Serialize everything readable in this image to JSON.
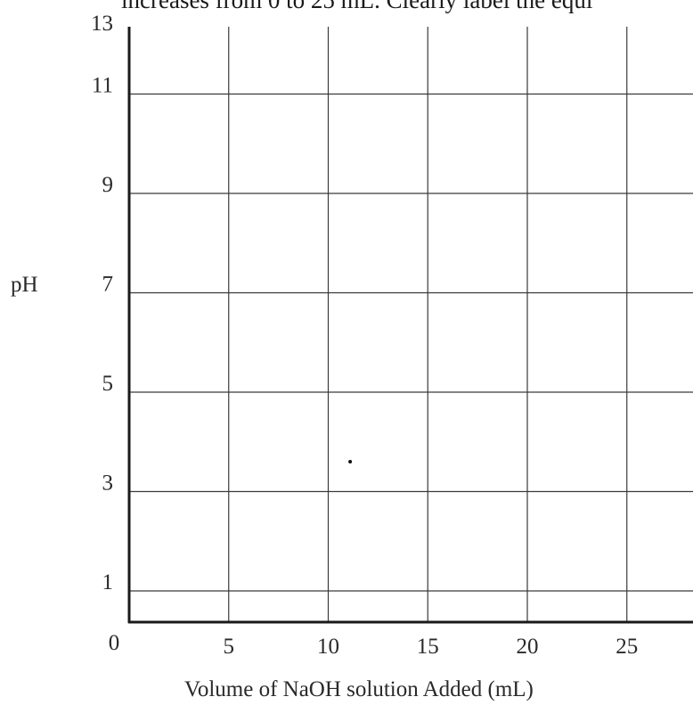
{
  "instruction_fragment": "increases from 0 to 25 mL. Clearly label the equi",
  "chart_data": {
    "type": "scatter",
    "title": "",
    "xlabel": "Volume of NaOH solution Added (mL)",
    "ylabel": "pH",
    "x_ticks": [
      "0",
      "5",
      "10",
      "15",
      "20",
      "25"
    ],
    "y_ticks": [
      "1",
      "3",
      "5",
      "7",
      "9",
      "11",
      "13"
    ],
    "x_gridlines": [
      5,
      10,
      15,
      20,
      25
    ],
    "y_gridlines": [
      1,
      3,
      5,
      7,
      9,
      11,
      13
    ],
    "xlim": [
      0,
      28
    ],
    "ylim": [
      0,
      13
    ],
    "grid": true,
    "points": [
      {
        "x": 11.1,
        "y": 3.6
      }
    ]
  }
}
